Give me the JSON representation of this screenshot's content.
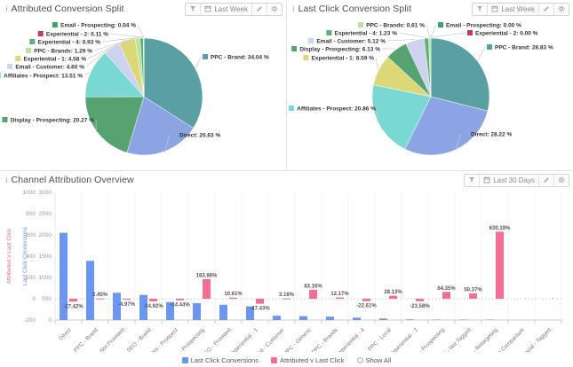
{
  "panels": [
    {
      "title": "Attributed Conversion Split",
      "controls": {
        "date_range": "Last Week"
      }
    },
    {
      "title": "Last Click Conversion Split",
      "controls": {
        "date_range": "Last Week"
      }
    },
    {
      "title": "Channel Attribution Overview",
      "controls": {
        "date_range": "Last 30 Days"
      }
    }
  ],
  "icons": {
    "info_icon": "i",
    "filter_icon": "funnel",
    "calendar_icon": "calendar",
    "edit_icon": "pencil",
    "settings_icon": "gear",
    "show_all_icon": "radio-circle"
  },
  "colors": {
    "bar_blue": "#6b96f2",
    "bar_pink": "#f56e91",
    "axis_pct_title": "#f06d92",
    "axis_count_title": "#6b96f2"
  },
  "chart_data": [
    {
      "type": "pie",
      "title": "Attributed Conversion Split",
      "slices": [
        {
          "label": "PPC - Brand",
          "value": 34.04,
          "color": "#5aa0a2"
        },
        {
          "label": "Direct",
          "value": 20.63,
          "color": "#8ca4e4"
        },
        {
          "label": "Display - Prospecting",
          "value": 20.27,
          "color": "#57a271"
        },
        {
          "label": "Affiliates - Prospect",
          "value": 13.51,
          "color": "#79d9d2"
        },
        {
          "label": "Email - Customer",
          "value": 4.6,
          "color": "#cdd2ee"
        },
        {
          "label": "Experiential - 1",
          "value": 4.58,
          "color": "#dcd87a"
        },
        {
          "label": "PPC - Brands",
          "value": 1.29,
          "color": "#b9e39b"
        },
        {
          "label": "Experiential - 4",
          "value": 0.93,
          "color": "#5fb077"
        },
        {
          "label": "Experiential - 2",
          "value": 0.11,
          "color": "#c23a60"
        },
        {
          "label": "Email - Prospecting",
          "value": 0.04,
          "color": "#3da562"
        }
      ]
    },
    {
      "type": "pie",
      "title": "Last Click Conversion Split",
      "slices": [
        {
          "label": "PPC - Brand",
          "value": 28.83,
          "color": "#5aa0a2"
        },
        {
          "label": "Direct",
          "value": 28.22,
          "color": "#8ca4e4"
        },
        {
          "label": "Affiliates - Prospect",
          "value": 20.86,
          "color": "#79d9d2"
        },
        {
          "label": "Experiential - 1",
          "value": 8.59,
          "color": "#dcd87a"
        },
        {
          "label": "Display - Prospecting",
          "value": 6.13,
          "color": "#57a271"
        },
        {
          "label": "Email - Customer",
          "value": 5.12,
          "color": "#cdd2ee"
        },
        {
          "label": "Experiential - 4",
          "value": 1.23,
          "color": "#5fb077"
        },
        {
          "label": "PPC - Brands",
          "value": 0.61,
          "color": "#b9e39b"
        },
        {
          "label": "Email - Prospecting",
          "value": 0.0,
          "color": "#3da562"
        },
        {
          "label": "Experiential - 2",
          "value": 0.0,
          "color": "#c23a60"
        }
      ]
    },
    {
      "type": "bar",
      "title": "Channel Attribution Overview",
      "categories": [
        "Direct",
        "PPC - Brand",
        "SEO - Not Provided",
        "SEO - Brand",
        "Affiliates - Prospect",
        "Display - Prospecting",
        "SEO - Provided",
        "Experiential - 1",
        "Email - Customer",
        "PPC - Generic",
        "PPC - Brands",
        "Experiential - 4",
        "PPC - Local",
        "Experiential - 2",
        "Email - Prospecting",
        "Social - Not Tagged",
        "Display - Retargeting",
        "Price Comparison",
        "Social - Tagged"
      ],
      "series": [
        {
          "name": "Last Click Conversions",
          "axis": "count",
          "color": "#6b96f2",
          "values": [
            2050,
            1390,
            640,
            590,
            420,
            395,
            360,
            320,
            100,
            90,
            80,
            55,
            35,
            15,
            10,
            10,
            10,
            null,
            null
          ]
        },
        {
          "name": "Attributed v Last Click",
          "axis": "pct",
          "color": "#f56e91",
          "values": [
            -27.42,
            2.45,
            -4.97,
            -24.92,
            -14.44,
            183.88,
            10.61,
            -47.43,
            3.16,
            83.16,
            12.17,
            -22.61,
            28.13,
            -23.58,
            64.35,
            50.37,
            630.19,
            null,
            null
          ]
        }
      ],
      "axes": {
        "pct": {
          "title": "Attributed v Last Click",
          "ticks": [
            1000,
            800,
            600,
            400,
            200,
            0,
            -200
          ],
          "range": [
            -200,
            1000
          ]
        },
        "count": {
          "title": "Last Click Conversions",
          "ticks": [
            3000,
            2500,
            2000,
            1500,
            1000,
            500,
            0
          ],
          "range": [
            0,
            3000
          ]
        }
      },
      "grid": "zero-line-dotted",
      "legend": {
        "position": "bottom-center",
        "items": [
          {
            "label": "Last Click Conversions",
            "color": "#6b96f2"
          },
          {
            "label": "Attributed v Last Click",
            "color": "#f56e91"
          }
        ],
        "show_all": "Show All"
      }
    }
  ]
}
